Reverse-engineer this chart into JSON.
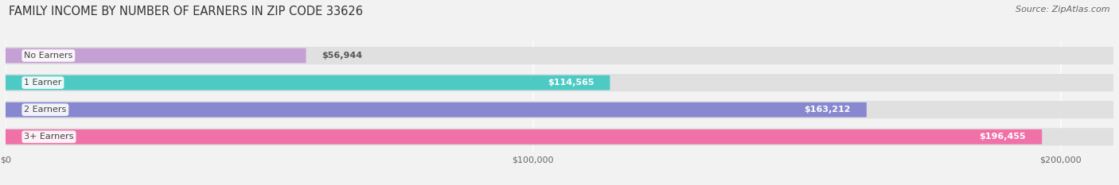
{
  "title": "FAMILY INCOME BY NUMBER OF EARNERS IN ZIP CODE 33626",
  "source": "Source: ZipAtlas.com",
  "categories": [
    "No Earners",
    "1 Earner",
    "2 Earners",
    "3+ Earners"
  ],
  "values": [
    56944,
    114565,
    163212,
    196455
  ],
  "value_labels": [
    "$56,944",
    "$114,565",
    "$163,212",
    "$196,455"
  ],
  "bar_colors": [
    "#c4a0d4",
    "#4ecac4",
    "#8888d0",
    "#f070a8"
  ],
  "xlim_max": 210000,
  "xticks": [
    0,
    100000,
    200000
  ],
  "xtick_labels": [
    "$0",
    "$100,000",
    "$200,000"
  ],
  "background_color": "#f2f2f2",
  "bar_bg_color": "#e0e0e0",
  "title_fontsize": 10.5,
  "source_fontsize": 8,
  "label_fontsize": 8,
  "value_fontsize": 8,
  "tick_fontsize": 8
}
